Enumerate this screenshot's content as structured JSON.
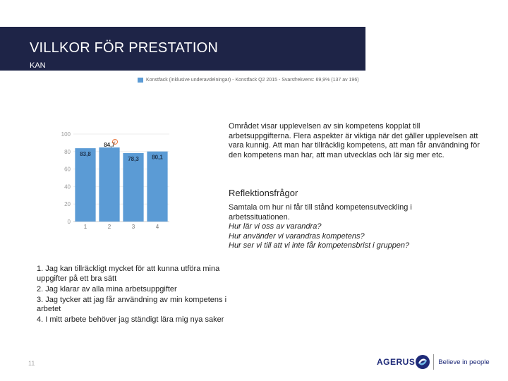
{
  "header": {
    "title": "VILLKOR FÖR PRESTATION",
    "subtitle": "KAN"
  },
  "legend": {
    "label": "Konstfack (inklusive underavdelningar) - Konstfack Q2 2015 - Svarsfrekvens: 69,9% (137 av 196)",
    "color": "#5b9bd5"
  },
  "chart_data": {
    "type": "bar",
    "categories": [
      "1",
      "2",
      "3",
      "4"
    ],
    "values": [
      83.8,
      84.7,
      78.3,
      80.1
    ],
    "value_labels": [
      "83,8",
      "84,7",
      "78,3",
      "80,1"
    ],
    "ylim": [
      0,
      100
    ],
    "yticks": [
      "0",
      "20",
      "40",
      "60",
      "80",
      "100"
    ],
    "annotation": {
      "category": "2",
      "text": "!"
    },
    "bar_color": "#5b9bd5"
  },
  "description": "Området visar upplevelsen av sin kompetens kopplat till arbetsuppgifterna. Flera aspekter är viktiga när det gäller upplevelsen att vara kunnig. Att man har tillräcklig kompetens, att man får användning för den kompetens man har, att man utvecklas och lär sig mer etc.",
  "reflection": {
    "heading": "Reflektionsfrågor",
    "intro": "Samtala om hur ni får till stånd kompetensutveckling i arbetssituationen.",
    "questions": [
      "Hur lär vi oss av varandra?",
      "Hur använder vi varandras kompetens?",
      "Hur ser vi till att vi inte får kompetensbrist i gruppen?"
    ]
  },
  "statements": [
    "1. Jag kan tillräckligt mycket för att kunna utföra mina uppgifter på ett bra sätt",
    "2. Jag klarar av alla mina arbetsuppgifter",
    "3. Jag tycker att jag får användning av min kompetens i arbetet",
    "4. I mitt arbete behöver jag ständigt lära mig nya saker"
  ],
  "page_number": "11",
  "logo": {
    "name": "AGERUS",
    "tagline": "Believe in people",
    "brand_color": "#1e2a78"
  }
}
